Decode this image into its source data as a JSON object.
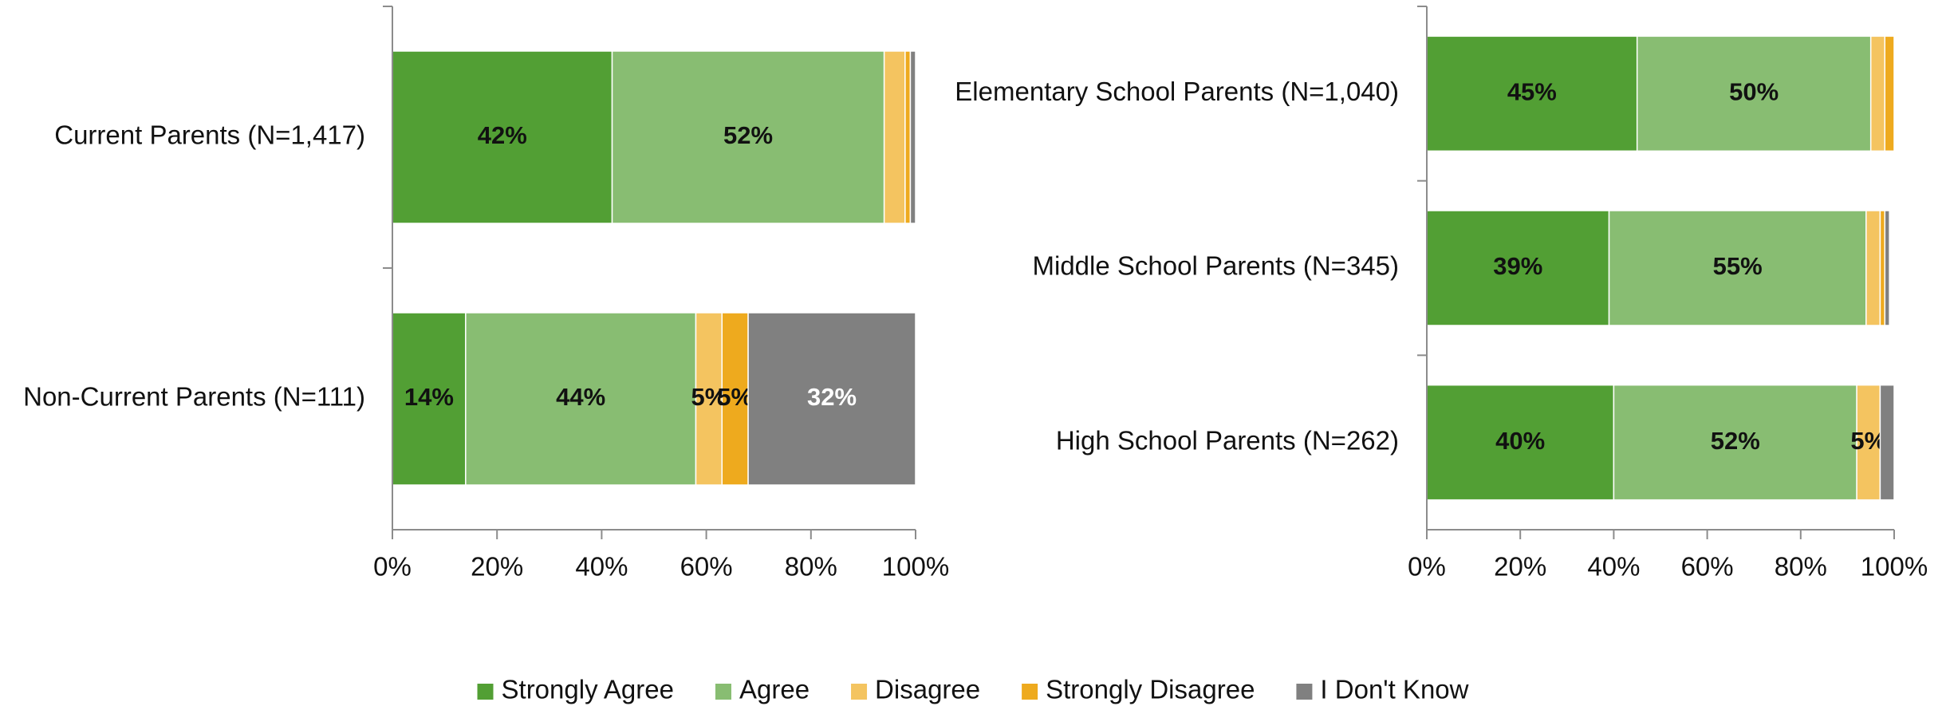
{
  "chart_data": [
    {
      "type": "bar",
      "orientation": "horizontal",
      "stacked": "percent",
      "categories": [
        "Current Parents (N=1,417)",
        "Non-Current Parents (N=111)"
      ],
      "series": [
        {
          "name": "Strongly Agree",
          "values": [
            42,
            14
          ],
          "labels": [
            "42%",
            "14%"
          ]
        },
        {
          "name": "Agree",
          "values": [
            52,
            44
          ],
          "labels": [
            "52%",
            "44%"
          ]
        },
        {
          "name": "Disagree",
          "values": [
            4,
            5
          ],
          "labels": [
            "",
            "5%"
          ]
        },
        {
          "name": "Strongly Disagree",
          "values": [
            1,
            5
          ],
          "labels": [
            "",
            "5%"
          ]
        },
        {
          "name": "I Don't Know",
          "values": [
            1,
            32
          ],
          "labels": [
            "",
            "32%"
          ]
        }
      ],
      "xlim": [
        0,
        100
      ],
      "xticks": [
        "0%",
        "20%",
        "40%",
        "60%",
        "80%",
        "100%"
      ]
    },
    {
      "type": "bar",
      "orientation": "horizontal",
      "stacked": "percent",
      "categories": [
        "Elementary School Parents (N=1,040)",
        "Middle School Parents (N=345)",
        "High School Parents (N=262)"
      ],
      "series": [
        {
          "name": "Strongly Agree",
          "values": [
            45,
            39,
            40
          ],
          "labels": [
            "45%",
            "39%",
            "40%"
          ]
        },
        {
          "name": "Agree",
          "values": [
            50,
            55,
            52
          ],
          "labels": [
            "50%",
            "55%",
            "52%"
          ]
        },
        {
          "name": "Disagree",
          "values": [
            3,
            3,
            5
          ],
          "labels": [
            "",
            "",
            "5%"
          ]
        },
        {
          "name": "Strongly Disagree",
          "values": [
            2,
            1,
            0
          ],
          "labels": [
            "",
            "",
            ""
          ]
        },
        {
          "name": "I Don't Know",
          "values": [
            0.5,
            1,
            3
          ],
          "labels": [
            "",
            "",
            ""
          ]
        }
      ],
      "xlim": [
        0,
        100
      ],
      "xticks": [
        "0%",
        "20%",
        "40%",
        "60%",
        "80%",
        "100%"
      ]
    }
  ],
  "legend": {
    "position": "bottom",
    "items": [
      {
        "name": "Strongly Agree",
        "color": "#529f34"
      },
      {
        "name": "Agree",
        "color": "#88bd72"
      },
      {
        "name": "Disagree",
        "color": "#f4c460"
      },
      {
        "name": "Strongly Disagree",
        "color": "#eeaa1e"
      },
      {
        "name": "I Don't Know",
        "color": "#808080"
      }
    ]
  },
  "label_colors": {
    "Strongly Agree": "#111111",
    "Agree": "#111111",
    "Disagree": "#111111",
    "Strongly Disagree": "#111111",
    "I Don't Know": "#ffffff"
  }
}
